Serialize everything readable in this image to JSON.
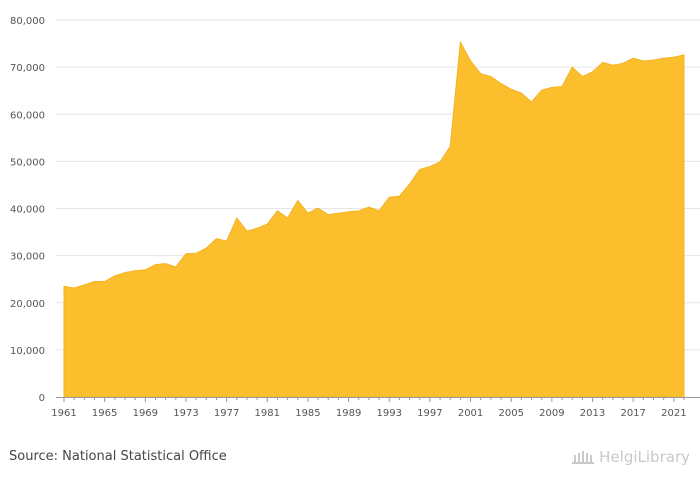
{
  "source_text": "Source: National Statistical Office",
  "brand": {
    "name": "HelgiLibrary",
    "icon": "library-building-icon"
  },
  "colors": {
    "area": "#fbbf2e",
    "area_edge": "#f5b321",
    "grid": "#e6e6e6",
    "axis": "#999999"
  },
  "chart_data": {
    "type": "area",
    "title": "",
    "xlabel": "",
    "ylabel": "",
    "grid": true,
    "legend": "none",
    "xlim": [
      1961,
      2022
    ],
    "ylim": [
      0,
      80000
    ],
    "x_ticks": [
      1961,
      1965,
      1969,
      1973,
      1977,
      1981,
      1985,
      1989,
      1993,
      1997,
      2001,
      2005,
      2009,
      2013,
      2017,
      2021
    ],
    "y_ticks": [
      0,
      10000,
      20000,
      30000,
      40000,
      50000,
      60000,
      70000,
      80000
    ],
    "y_tick_labels": [
      "0",
      "10,000",
      "20,000",
      "30,000",
      "40,000",
      "50,000",
      "60,000",
      "70,000",
      "80,000"
    ],
    "x": [
      1961,
      1962,
      1963,
      1964,
      1965,
      1966,
      1967,
      1968,
      1969,
      1970,
      1971,
      1972,
      1973,
      1974,
      1975,
      1976,
      1977,
      1978,
      1979,
      1980,
      1981,
      1982,
      1983,
      1984,
      1985,
      1986,
      1987,
      1988,
      1989,
      1990,
      1991,
      1992,
      1993,
      1994,
      1995,
      1996,
      1997,
      1998,
      1999,
      2000,
      2001,
      2002,
      2003,
      2004,
      2005,
      2006,
      2007,
      2008,
      2009,
      2010,
      2011,
      2012,
      2013,
      2014,
      2015,
      2016,
      2017,
      2018,
      2019,
      2020,
      2021,
      2022
    ],
    "values": [
      23500,
      23100,
      23800,
      24500,
      24500,
      25700,
      26400,
      26800,
      27000,
      28100,
      28300,
      27600,
      30400,
      30500,
      31600,
      33600,
      33100,
      38000,
      35200,
      35800,
      36700,
      39500,
      38000,
      41700,
      39000,
      40100,
      38700,
      39000,
      39300,
      39500,
      40300,
      39500,
      42400,
      42600,
      45200,
      48300,
      48900,
      49900,
      53200,
      75300,
      71300,
      68600,
      68000,
      66500,
      65300,
      64500,
      62600,
      65100,
      65700,
      65900,
      70000,
      68000,
      69000,
      71000,
      70400,
      70800,
      71900,
      71300,
      71500,
      71900,
      72100,
      72600
    ]
  }
}
